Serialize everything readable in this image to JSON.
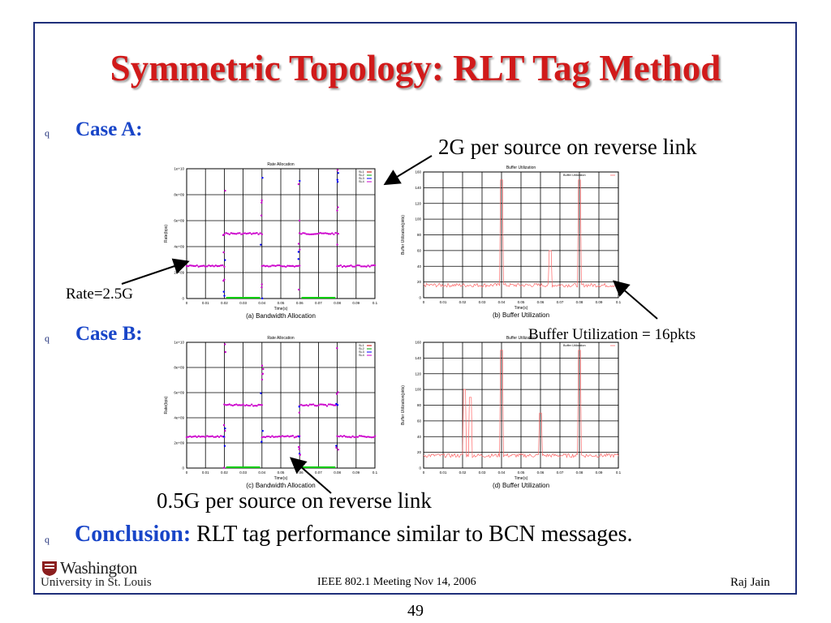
{
  "slide": {
    "title": "Symmetric Topology: RLT Tag Method",
    "bullet_glyph": "q",
    "case_a": "Case A:",
    "case_b": "Case B:",
    "conclusion_label": "Conclusion:",
    "conclusion_text": " RLT tag performance similar to BCN messages.",
    "annotations": {
      "reverse_2g": "2G per source on reverse link",
      "rate": "Rate=2.5G",
      "buffer": "Buffer Utilization = 16pkts",
      "reverse_05g": "0.5G per source on reverse link"
    },
    "footer": {
      "center": "IEEE 802.1 Meeting  Nov 14, 2006",
      "right": "Raj Jain",
      "page": "49",
      "logo_line1": "Washington",
      "logo_line2": "University in St. Louis"
    }
  },
  "chart_data": [
    {
      "type": "scatter",
      "panel": "a",
      "title": "Rate Allocation",
      "caption": "(a) Bandwidth Allocation",
      "xlabel": "Time(s)",
      "ylabel": "Rate(bps)",
      "xlim": [
        0,
        0.1
      ],
      "ylim": [
        0,
        10000000000
      ],
      "xticks": [
        "0",
        "0.01",
        "0.02",
        "0.03",
        "0.04",
        "0.05",
        "0.06",
        "0.07",
        "0.08",
        "0.09",
        "0.1"
      ],
      "yticks": [
        "0",
        "2e+09",
        "4e+09",
        "6e+09",
        "8e+09",
        "1e+10"
      ],
      "legend": [
        "SL1",
        "SL2",
        "SL3",
        "SL4"
      ],
      "series_levels": [
        {
          "x": [
            0,
            0.02,
            0.02,
            0.04,
            0.04,
            0.06,
            0.06,
            0.08,
            0.08,
            0.1
          ],
          "y": [
            2500000000,
            2500000000,
            5000000000,
            5000000000,
            2500000000,
            2500000000,
            5000000000,
            5000000000,
            2500000000,
            2500000000
          ]
        }
      ],
      "grid": true
    },
    {
      "type": "line",
      "panel": "b",
      "title": "Buffer Utilization",
      "caption": "(b) Buffer Utilization",
      "xlabel": "Time(s)",
      "ylabel": "Buffer Utilization(pkts)",
      "xlim": [
        0,
        0.1
      ],
      "ylim": [
        0,
        160
      ],
      "xticks": [
        "0",
        "0.01",
        "0.02",
        "0.03",
        "0.04",
        "0.05",
        "0.06",
        "0.07",
        "0.08",
        "0.09",
        "0.1"
      ],
      "yticks": [
        "0",
        "20",
        "40",
        "60",
        "80",
        "100",
        "120",
        "140",
        "160"
      ],
      "legend": [
        "Buffer Utilization"
      ],
      "spikes": [
        {
          "x": 0.04,
          "y": 150
        },
        {
          "x": 0.065,
          "y": 60
        },
        {
          "x": 0.08,
          "y": 150
        }
      ],
      "baseline": 16,
      "grid": true
    },
    {
      "type": "scatter",
      "panel": "c",
      "title": "Rate Allocation",
      "caption": "(c) Bandwidth Allocation",
      "xlabel": "Time(s)",
      "ylabel": "Rate(bps)",
      "xlim": [
        0,
        0.1
      ],
      "ylim": [
        0,
        10000000000
      ],
      "xticks": [
        "0",
        "0.01",
        "0.02",
        "0.03",
        "0.04",
        "0.05",
        "0.06",
        "0.07",
        "0.08",
        "0.09",
        "0.1"
      ],
      "yticks": [
        "0",
        "2e+09",
        "4e+09",
        "6e+09",
        "8e+09",
        "1e+10"
      ],
      "legend": [
        "SL1",
        "SL2",
        "SL3",
        "SL4"
      ],
      "series_levels": [
        {
          "x": [
            0,
            0.02,
            0.02,
            0.04,
            0.04,
            0.06,
            0.06,
            0.08,
            0.08,
            0.1
          ],
          "y": [
            2500000000,
            2500000000,
            5000000000,
            5000000000,
            2500000000,
            2500000000,
            5000000000,
            5000000000,
            2500000000,
            2500000000
          ]
        }
      ],
      "grid": true
    },
    {
      "type": "line",
      "panel": "d",
      "title": "Buffer Utilization",
      "caption": "(d) Buffer Utilization",
      "xlabel": "Time(s)",
      "ylabel": "Buffer Utilization(pkts)",
      "xlim": [
        0,
        0.1
      ],
      "ylim": [
        0,
        160
      ],
      "xticks": [
        "0",
        "0.01",
        "0.02",
        "0.03",
        "0.04",
        "0.05",
        "0.06",
        "0.07",
        "0.08",
        "0.09",
        "0.1"
      ],
      "yticks": [
        "0",
        "20",
        "40",
        "60",
        "80",
        "100",
        "120",
        "140",
        "160"
      ],
      "legend": [
        "Buffer Utilization"
      ],
      "spikes": [
        {
          "x": 0.021,
          "y": 100
        },
        {
          "x": 0.024,
          "y": 90
        },
        {
          "x": 0.04,
          "y": 150
        },
        {
          "x": 0.06,
          "y": 70
        },
        {
          "x": 0.08,
          "y": 150
        }
      ],
      "baseline": 16,
      "grid": true
    }
  ]
}
